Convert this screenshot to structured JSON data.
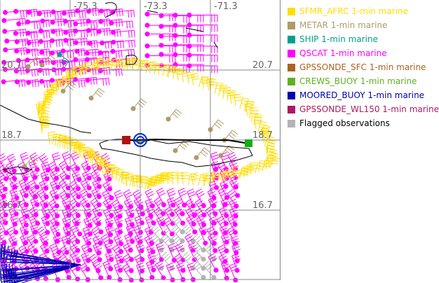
{
  "map": {
    "lon_labels": [
      "-75.3",
      "-73.3",
      "-71.3"
    ],
    "lat_labels": [
      "20.7",
      "18.7",
      "16.7"
    ],
    "colors": {
      "coast": "#000000",
      "grid": "#888888",
      "track": "#000000"
    }
  },
  "legend": {
    "items": [
      {
        "label": "SFMR_AFRC 1-min marine",
        "color": "#ffdd00"
      },
      {
        "label": "METAR 1-min marine",
        "color": "#b09a6a"
      },
      {
        "label": "SHIP 1-min marine",
        "color": "#00a090"
      },
      {
        "label": "QSCAT 1-min marine",
        "color": "#ff00ff"
      },
      {
        "label": "GPSSONDE_SFC 1-min marine",
        "color": "#b06020"
      },
      {
        "label": "CREWS_BUOY 1-min marine",
        "color": "#60b020"
      },
      {
        "label": "MOORED_BUOY 1-min marine",
        "color": "#0000b0"
      },
      {
        "label": "GPSSONDE_WL150 1-min marine",
        "color": "#b01860"
      },
      {
        "label": "Flagged observations",
        "color": "#b4b4b4",
        "text_color": "#000000"
      }
    ]
  }
}
